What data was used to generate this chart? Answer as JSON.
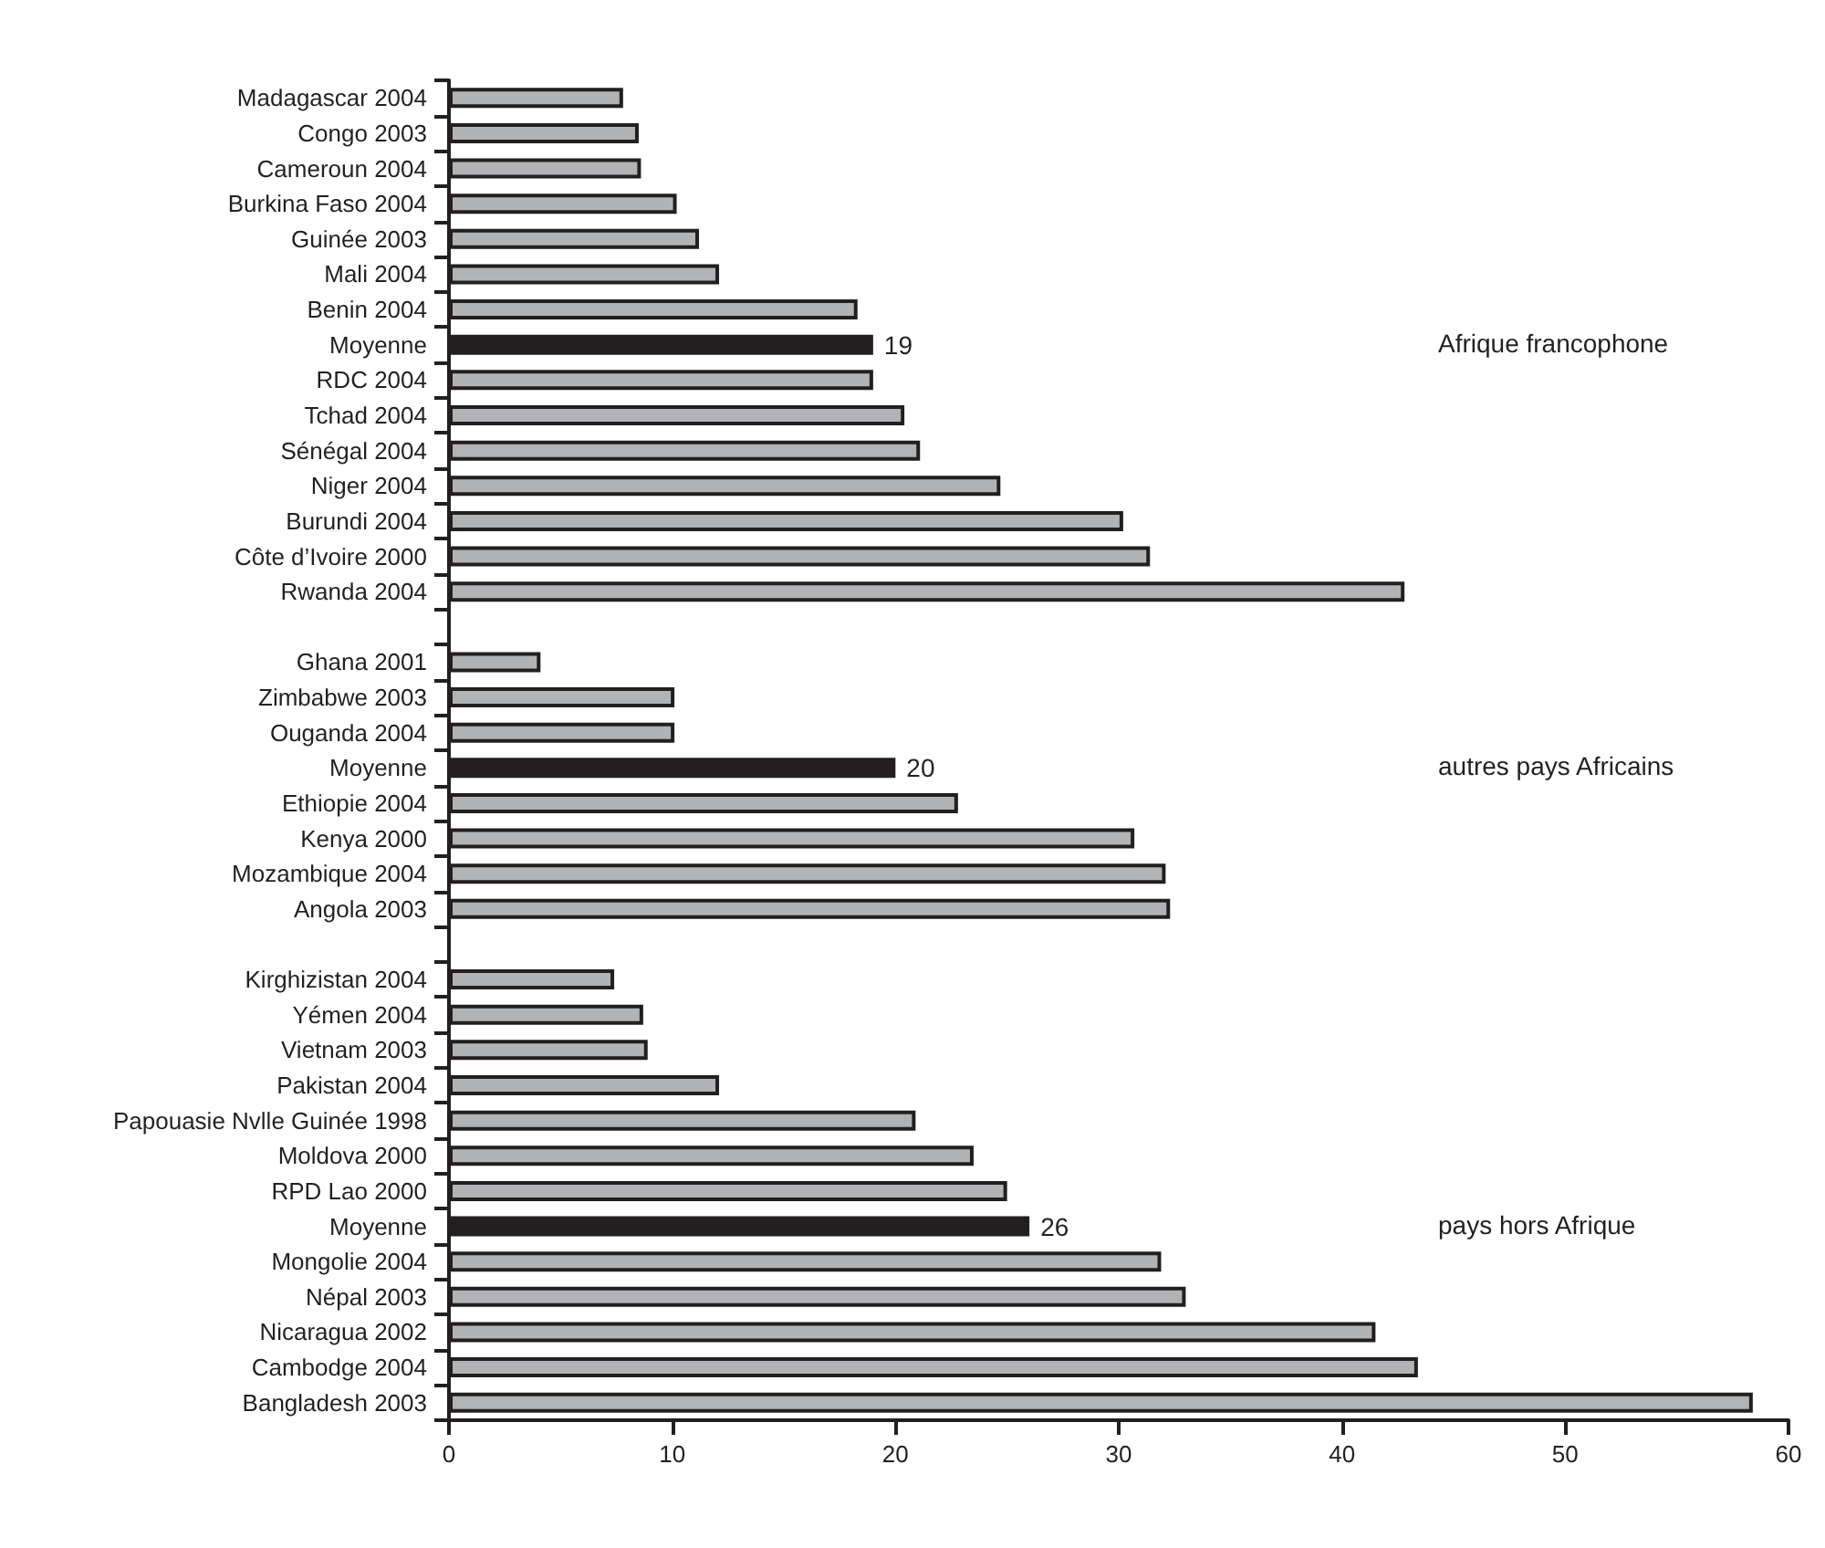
{
  "chart_data": {
    "type": "bar",
    "orientation": "horizontal",
    "categories": [
      "Madagascar 2004",
      "Congo 2003",
      "Cameroun 2004",
      "Burkina Faso 2004",
      "Guinée 2003",
      "Mali 2004",
      "Benin 2004",
      "Moyenne",
      "RDC 2004",
      "Tchad 2004",
      "Sénégal 2004",
      "Niger 2004",
      "Burundi 2004",
      "Côte d’Ivoire 2000",
      "Rwanda 2004",
      null,
      "Ghana 2001",
      "Zimbabwe 2003",
      "Ouganda 2004",
      "Moyenne",
      "Ethiopie 2004",
      "Kenya 2000",
      "Mozambique 2004",
      "Angola 2003",
      null,
      "Kirghizistan 2004",
      "Yémen 2004",
      "Vietnam 2003",
      "Pakistan 2004",
      "Papouasie Nvlle Guinée 1998",
      "Moldova 2000",
      "RPD Lao 2000",
      "Moyenne",
      "Mongolie 2004",
      "Népal 2003",
      "Nicaragua 2002",
      "Cambodge 2004",
      "Bangladesh 2003"
    ],
    "values": [
      7.8,
      8.5,
      8.6,
      10.2,
      11.2,
      12.1,
      18.3,
      19,
      19.0,
      20.4,
      21.1,
      24.7,
      30.2,
      31.4,
      42.8,
      null,
      4.1,
      10.1,
      10.1,
      20,
      22.8,
      30.7,
      32.1,
      32.3,
      null,
      7.4,
      8.7,
      8.9,
      12.1,
      20.9,
      23.5,
      25.0,
      26,
      31.9,
      33.0,
      41.5,
      43.4,
      58.4
    ],
    "value_labels": [
      null,
      null,
      null,
      null,
      null,
      null,
      null,
      "19",
      null,
      null,
      null,
      null,
      null,
      null,
      null,
      null,
      null,
      null,
      null,
      "20",
      null,
      null,
      null,
      null,
      null,
      null,
      null,
      null,
      null,
      null,
      null,
      null,
      "26",
      null,
      null,
      null,
      null,
      null
    ],
    "colors": [
      "#b1b3b5",
      "#b1b3b5",
      "#b1b3b5",
      "#b1b3b5",
      "#b1b3b5",
      "#b1b3b5",
      "#b1b3b5",
      "#231f20",
      "#b1b3b5",
      "#b1b3b5",
      "#b1b3b5",
      "#b1b3b5",
      "#b1b3b5",
      "#b1b3b5",
      "#b1b3b5",
      "#b1b3b5",
      "#b1b3b5",
      "#b1b3b5",
      "#b1b3b5",
      "#231f20",
      "#b1b3b5",
      "#b1b3b5",
      "#b1b3b5",
      "#b1b3b5",
      "#b1b3b5",
      "#b1b3b5",
      "#b1b3b5",
      "#b1b3b5",
      "#b1b3b5",
      "#b1b3b5",
      "#b1b3b5",
      "#b1b3b5",
      "#231f20",
      "#b1b3b5",
      "#b1b3b5",
      "#b1b3b5",
      "#b1b3b5",
      "#b1b3b5"
    ],
    "annotations": [
      "Afrique francophone",
      "autres pays Africains",
      "pays hors Afrique"
    ],
    "xlim": [
      0,
      60
    ],
    "xticks": [
      0,
      10,
      20,
      30,
      40,
      50,
      60
    ]
  }
}
